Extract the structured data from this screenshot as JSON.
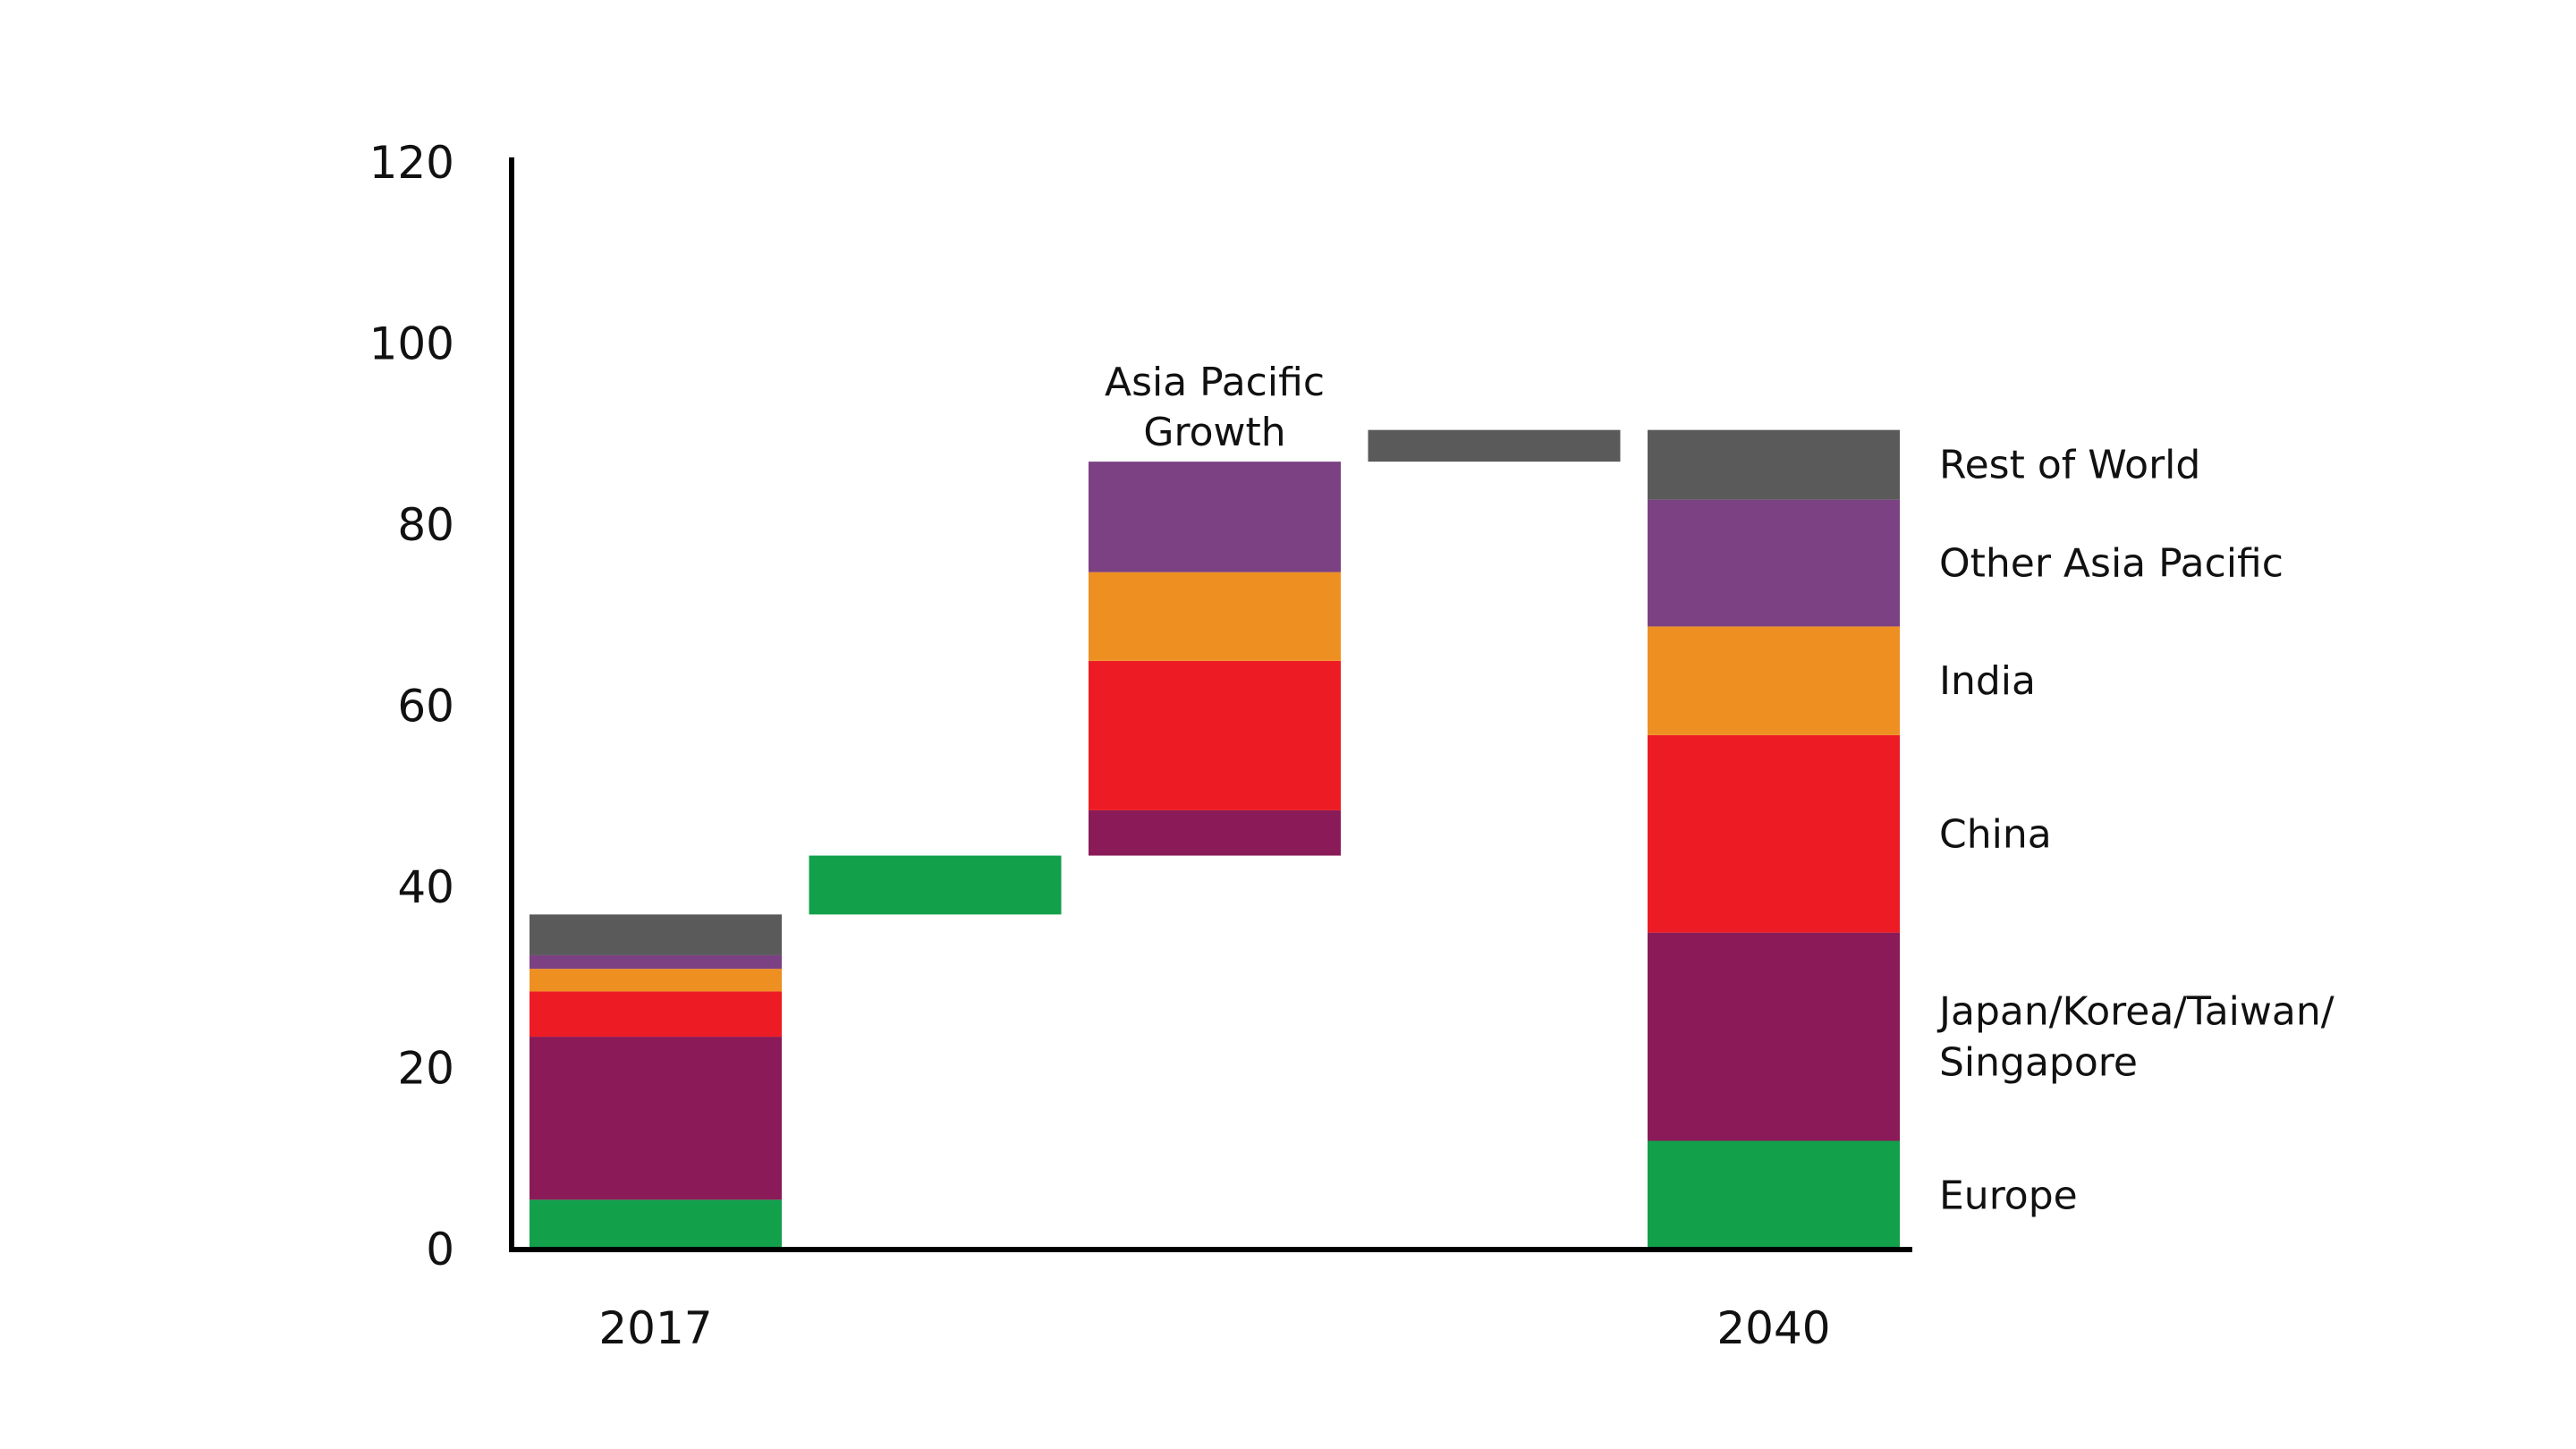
{
  "chart_data": {
    "type": "bar",
    "subtype": "waterfall-stacked",
    "title": "",
    "xlabel": "",
    "ylabel": "",
    "ylim": [
      0,
      120
    ],
    "yticks": [
      0,
      20,
      40,
      60,
      80,
      100,
      120
    ],
    "grid": false,
    "legend_placement": "right",
    "annotation": [
      "Asia Pacific",
      "Growth"
    ],
    "series": [
      {
        "name": "Europe",
        "color": "#12a04a"
      },
      {
        "name": "Japan/Korea/Taiwan/Singapore",
        "label_lines": [
          "Japan/Korea/Taiwan/",
          "Singapore"
        ],
        "color": "#8a1b58"
      },
      {
        "name": "China",
        "color": "#ed1c24"
      },
      {
        "name": "India",
        "color": "#ee8f22"
      },
      {
        "name": "Other Asia Pacific",
        "color": "#7b4183"
      },
      {
        "name": "Rest of World",
        "color": "#5a5a5a"
      }
    ],
    "bars": [
      {
        "label": "2017",
        "segments": [
          {
            "series": "Europe",
            "start": 0,
            "end": 5.5
          },
          {
            "series": "Japan/Korea/Taiwan/Singapore",
            "start": 5.5,
            "end": 23.5
          },
          {
            "series": "China",
            "start": 23.5,
            "end": 28.5
          },
          {
            "series": "India",
            "start": 28.5,
            "end": 31
          },
          {
            "series": "Other Asia Pacific",
            "start": 31,
            "end": 32.5
          },
          {
            "series": "Rest of World",
            "start": 32.5,
            "end": 37
          }
        ]
      },
      {
        "label": "",
        "segments": [
          {
            "series": "Europe",
            "start": 37,
            "end": 43.5
          }
        ]
      },
      {
        "label": "",
        "segments": [
          {
            "series": "Japan/Korea/Taiwan/Singapore",
            "start": 43.5,
            "end": 48.5
          },
          {
            "series": "China",
            "start": 48.5,
            "end": 65
          },
          {
            "series": "India",
            "start": 65,
            "end": 74.8
          },
          {
            "series": "Other Asia Pacific",
            "start": 74.8,
            "end": 87
          }
        ]
      },
      {
        "label": "",
        "segments": [
          {
            "series": "Rest of World",
            "start": 87,
            "end": 90.5
          }
        ]
      },
      {
        "label": "2040",
        "segments": [
          {
            "series": "Europe",
            "start": 0,
            "end": 12
          },
          {
            "series": "Japan/Korea/Taiwan/Singapore",
            "start": 12,
            "end": 35
          },
          {
            "series": "China",
            "start": 35,
            "end": 56.8
          },
          {
            "series": "India",
            "start": 56.8,
            "end": 68.8
          },
          {
            "series": "Other Asia Pacific",
            "start": 68.8,
            "end": 82.8
          },
          {
            "series": "Rest of World",
            "start": 82.8,
            "end": 90.5
          }
        ]
      }
    ]
  }
}
